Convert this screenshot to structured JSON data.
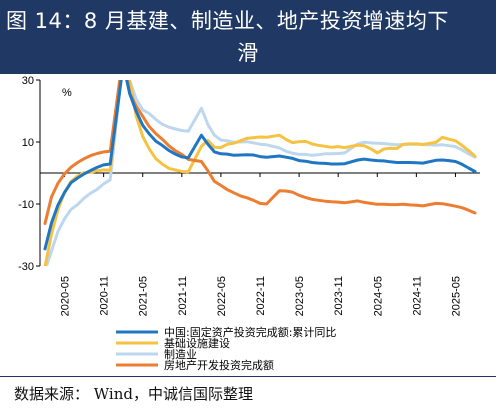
{
  "header": {
    "title_line1": "图 14：8 月基建、制造业、地产投资增速均下",
    "title_line2": "滑"
  },
  "source": {
    "text": "数据来源：  Wind，中诚信国际整理"
  },
  "chart_data": {
    "type": "line",
    "unit_label": "%",
    "ylim": [
      -30,
      30
    ],
    "yticks": [
      30,
      10,
      -10,
      -30
    ],
    "xlim": [
      "2020-02",
      "2025-08"
    ],
    "xticks": [
      "2020-05",
      "2020-11",
      "2021-05",
      "2021-11",
      "2022-05",
      "2022-11",
      "2023-05",
      "2023-11",
      "2024-05",
      "2024-11",
      "2025-05"
    ],
    "legend_position": "bottom",
    "grid": false,
    "series": [
      {
        "name": "中国:固定资产投资完成额:累计同比",
        "color": "#1f77c4",
        "points": [
          [
            "2020-02",
            -24.5
          ],
          [
            "2020-03",
            -16.1
          ],
          [
            "2020-04",
            -10.3
          ],
          [
            "2020-05",
            -6.3
          ],
          [
            "2020-06",
            -3.1
          ],
          [
            "2020-07",
            -1.6
          ],
          [
            "2020-08",
            -0.3
          ],
          [
            "2020-09",
            0.8
          ],
          [
            "2020-10",
            1.8
          ],
          [
            "2020-11",
            2.6
          ],
          [
            "2020-12",
            2.9
          ],
          [
            "2021-02",
            35.0
          ],
          [
            "2021-03",
            25.6
          ],
          [
            "2021-04",
            19.9
          ],
          [
            "2021-05",
            15.4
          ],
          [
            "2021-06",
            12.6
          ],
          [
            "2021-07",
            10.3
          ],
          [
            "2021-08",
            8.9
          ],
          [
            "2021-09",
            7.3
          ],
          [
            "2021-10",
            6.1
          ],
          [
            "2021-11",
            5.2
          ],
          [
            "2021-12",
            4.9
          ],
          [
            "2022-02",
            12.2
          ],
          [
            "2022-03",
            9.3
          ],
          [
            "2022-04",
            6.8
          ],
          [
            "2022-05",
            6.2
          ],
          [
            "2022-06",
            6.1
          ],
          [
            "2022-07",
            5.7
          ],
          [
            "2022-08",
            5.8
          ],
          [
            "2022-09",
            5.9
          ],
          [
            "2022-10",
            5.8
          ],
          [
            "2022-11",
            5.3
          ],
          [
            "2022-12",
            5.1
          ],
          [
            "2023-02",
            5.5
          ],
          [
            "2023-03",
            5.1
          ],
          [
            "2023-04",
            4.7
          ],
          [
            "2023-05",
            4.0
          ],
          [
            "2023-06",
            3.8
          ],
          [
            "2023-07",
            3.4
          ],
          [
            "2023-08",
            3.2
          ],
          [
            "2023-09",
            3.1
          ],
          [
            "2023-10",
            2.9
          ],
          [
            "2023-11",
            2.9
          ],
          [
            "2023-12",
            3.0
          ],
          [
            "2024-02",
            4.2
          ],
          [
            "2024-03",
            4.5
          ],
          [
            "2024-04",
            4.2
          ],
          [
            "2024-05",
            4.0
          ],
          [
            "2024-06",
            3.9
          ],
          [
            "2024-07",
            3.6
          ],
          [
            "2024-08",
            3.4
          ],
          [
            "2024-09",
            3.4
          ],
          [
            "2024-10",
            3.4
          ],
          [
            "2024-11",
            3.3
          ],
          [
            "2024-12",
            3.2
          ],
          [
            "2025-02",
            4.1
          ],
          [
            "2025-03",
            4.2
          ],
          [
            "2025-04",
            4.0
          ],
          [
            "2025-05",
            3.7
          ],
          [
            "2025-06",
            2.8
          ],
          [
            "2025-07",
            1.6
          ],
          [
            "2025-08",
            0.5
          ]
        ]
      },
      {
        "name": "基础设施建设",
        "color": "#f5c242",
        "points": [
          [
            "2020-02",
            -30.3
          ],
          [
            "2020-03",
            -19.7
          ],
          [
            "2020-04",
            -11.8
          ],
          [
            "2020-05",
            -6.3
          ],
          [
            "2020-06",
            -2.7
          ],
          [
            "2020-07",
            -1.0
          ],
          [
            "2020-08",
            0.1
          ],
          [
            "2020-09",
            0.2
          ],
          [
            "2020-10",
            0.7
          ],
          [
            "2020-11",
            1.0
          ],
          [
            "2020-12",
            0.9
          ],
          [
            "2021-02",
            36.6
          ],
          [
            "2021-03",
            29.7
          ],
          [
            "2021-04",
            18.4
          ],
          [
            "2021-05",
            11.8
          ],
          [
            "2021-06",
            7.8
          ],
          [
            "2021-07",
            4.6
          ],
          [
            "2021-08",
            2.9
          ],
          [
            "2021-09",
            1.5
          ],
          [
            "2021-10",
            1.0
          ],
          [
            "2021-11",
            0.5
          ],
          [
            "2021-12",
            0.4
          ],
          [
            "2022-02",
            8.6
          ],
          [
            "2022-03",
            10.5
          ],
          [
            "2022-04",
            8.3
          ],
          [
            "2022-05",
            8.2
          ],
          [
            "2022-06",
            9.3
          ],
          [
            "2022-07",
            9.6
          ],
          [
            "2022-08",
            10.4
          ],
          [
            "2022-09",
            11.2
          ],
          [
            "2022-10",
            11.4
          ],
          [
            "2022-11",
            11.6
          ],
          [
            "2022-12",
            11.5
          ],
          [
            "2023-02",
            12.2
          ],
          [
            "2023-03",
            10.8
          ],
          [
            "2023-04",
            9.8
          ],
          [
            "2023-05",
            10.1
          ],
          [
            "2023-06",
            10.2
          ],
          [
            "2023-07",
            9.4
          ],
          [
            "2023-08",
            8.9
          ],
          [
            "2023-09",
            8.6
          ],
          [
            "2023-10",
            8.3
          ],
          [
            "2023-11",
            8.5
          ],
          [
            "2023-12",
            8.2
          ],
          [
            "2024-02",
            9.0
          ],
          [
            "2024-03",
            8.8
          ],
          [
            "2024-04",
            7.8
          ],
          [
            "2024-05",
            6.5
          ],
          [
            "2024-06",
            7.7
          ],
          [
            "2024-07",
            8.0
          ],
          [
            "2024-08",
            7.9
          ],
          [
            "2024-09",
            9.3
          ],
          [
            "2024-10",
            9.4
          ],
          [
            "2024-11",
            9.4
          ],
          [
            "2024-12",
            9.2
          ],
          [
            "2025-02",
            9.9
          ],
          [
            "2025-03",
            11.5
          ],
          [
            "2025-04",
            10.9
          ],
          [
            "2025-05",
            10.4
          ],
          [
            "2025-06",
            8.9
          ],
          [
            "2025-07",
            7.3
          ],
          [
            "2025-08",
            5.4
          ]
        ]
      },
      {
        "name": "制造业",
        "color": "#bdd7ee",
        "points": [
          [
            "2020-02",
            -31.5
          ],
          [
            "2020-03",
            -25.2
          ],
          [
            "2020-04",
            -18.8
          ],
          [
            "2020-05",
            -14.8
          ],
          [
            "2020-06",
            -11.7
          ],
          [
            "2020-07",
            -10.2
          ],
          [
            "2020-08",
            -8.1
          ],
          [
            "2020-09",
            -6.5
          ],
          [
            "2020-10",
            -5.3
          ],
          [
            "2020-11",
            -3.5
          ],
          [
            "2020-12",
            -2.2
          ],
          [
            "2021-02",
            37.3
          ],
          [
            "2021-03",
            29.8
          ],
          [
            "2021-04",
            23.8
          ],
          [
            "2021-05",
            20.4
          ],
          [
            "2021-06",
            19.2
          ],
          [
            "2021-07",
            17.3
          ],
          [
            "2021-08",
            15.7
          ],
          [
            "2021-09",
            14.8
          ],
          [
            "2021-10",
            14.2
          ],
          [
            "2021-11",
            13.7
          ],
          [
            "2021-12",
            13.5
          ],
          [
            "2022-02",
            20.9
          ],
          [
            "2022-03",
            15.6
          ],
          [
            "2022-04",
            12.2
          ],
          [
            "2022-05",
            10.6
          ],
          [
            "2022-06",
            10.4
          ],
          [
            "2022-07",
            9.9
          ],
          [
            "2022-08",
            10.0
          ],
          [
            "2022-09",
            10.1
          ],
          [
            "2022-10",
            9.7
          ],
          [
            "2022-11",
            9.3
          ],
          [
            "2022-12",
            9.1
          ],
          [
            "2023-02",
            8.1
          ],
          [
            "2023-03",
            7.0
          ],
          [
            "2023-04",
            6.4
          ],
          [
            "2023-05",
            6.0
          ],
          [
            "2023-06",
            6.0
          ],
          [
            "2023-07",
            5.7
          ],
          [
            "2023-08",
            5.9
          ],
          [
            "2023-09",
            6.2
          ],
          [
            "2023-10",
            6.2
          ],
          [
            "2023-11",
            6.3
          ],
          [
            "2023-12",
            6.5
          ],
          [
            "2024-02",
            9.4
          ],
          [
            "2024-03",
            9.9
          ],
          [
            "2024-04",
            9.7
          ],
          [
            "2024-05",
            9.6
          ],
          [
            "2024-06",
            9.5
          ],
          [
            "2024-07",
            9.3
          ],
          [
            "2024-08",
            9.1
          ],
          [
            "2024-09",
            9.2
          ],
          [
            "2024-10",
            9.3
          ],
          [
            "2024-11",
            9.3
          ],
          [
            "2024-12",
            9.2
          ],
          [
            "2025-02",
            9.0
          ],
          [
            "2025-03",
            9.1
          ],
          [
            "2025-04",
            8.8
          ],
          [
            "2025-05",
            8.5
          ],
          [
            "2025-06",
            7.5
          ],
          [
            "2025-07",
            6.2
          ],
          [
            "2025-08",
            5.1
          ]
        ]
      },
      {
        "name": "房地产开发投资完成额",
        "color": "#ed7d31",
        "points": [
          [
            "2020-02",
            -16.3
          ],
          [
            "2020-03",
            -7.7
          ],
          [
            "2020-04",
            -3.3
          ],
          [
            "2020-05",
            -0.3
          ],
          [
            "2020-06",
            1.9
          ],
          [
            "2020-07",
            3.4
          ],
          [
            "2020-08",
            4.6
          ],
          [
            "2020-09",
            5.6
          ],
          [
            "2020-10",
            6.3
          ],
          [
            "2020-11",
            6.8
          ],
          [
            "2020-12",
            7.0
          ],
          [
            "2021-02",
            38.3
          ],
          [
            "2021-03",
            25.6
          ],
          [
            "2021-04",
            21.6
          ],
          [
            "2021-05",
            18.3
          ],
          [
            "2021-06",
            15.0
          ],
          [
            "2021-07",
            12.7
          ],
          [
            "2021-08",
            10.9
          ],
          [
            "2021-09",
            8.8
          ],
          [
            "2021-10",
            7.2
          ],
          [
            "2021-11",
            6.0
          ],
          [
            "2021-12",
            4.4
          ],
          [
            "2022-02",
            3.7
          ],
          [
            "2022-03",
            0.7
          ],
          [
            "2022-04",
            -2.7
          ],
          [
            "2022-05",
            -4.0
          ],
          [
            "2022-06",
            -5.4
          ],
          [
            "2022-07",
            -6.4
          ],
          [
            "2022-08",
            -7.4
          ],
          [
            "2022-09",
            -8.0
          ],
          [
            "2022-10",
            -8.8
          ],
          [
            "2022-11",
            -9.8
          ],
          [
            "2022-12",
            -10.0
          ],
          [
            "2023-02",
            -5.7
          ],
          [
            "2023-03",
            -5.8
          ],
          [
            "2023-04",
            -6.2
          ],
          [
            "2023-05",
            -7.2
          ],
          [
            "2023-06",
            -7.9
          ],
          [
            "2023-07",
            -8.5
          ],
          [
            "2023-08",
            -8.8
          ],
          [
            "2023-09",
            -9.1
          ],
          [
            "2023-10",
            -9.3
          ],
          [
            "2023-11",
            -9.4
          ],
          [
            "2023-12",
            -9.6
          ],
          [
            "2024-02",
            -9.0
          ],
          [
            "2024-03",
            -9.5
          ],
          [
            "2024-04",
            -9.8
          ],
          [
            "2024-05",
            -10.1
          ],
          [
            "2024-06",
            -10.1
          ],
          [
            "2024-07",
            -10.2
          ],
          [
            "2024-08",
            -10.2
          ],
          [
            "2024-09",
            -10.1
          ],
          [
            "2024-10",
            -10.3
          ],
          [
            "2024-11",
            -10.4
          ],
          [
            "2024-12",
            -10.6
          ],
          [
            "2025-02",
            -9.8
          ],
          [
            "2025-03",
            -9.9
          ],
          [
            "2025-04",
            -10.3
          ],
          [
            "2025-05",
            -10.7
          ],
          [
            "2025-06",
            -11.2
          ],
          [
            "2025-07",
            -12.0
          ],
          [
            "2025-08",
            -12.9
          ]
        ]
      }
    ]
  }
}
